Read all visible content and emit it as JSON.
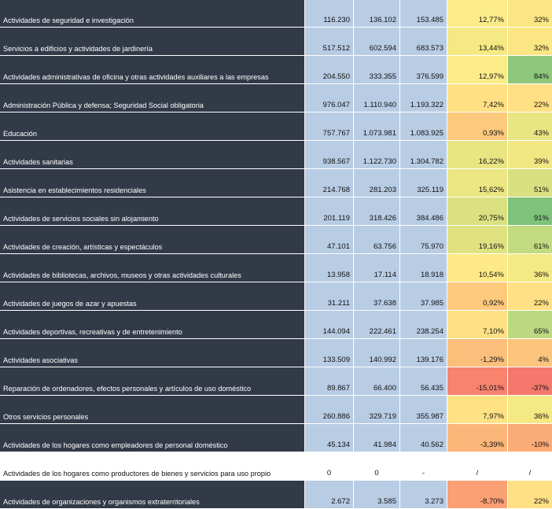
{
  "rows": [
    {
      "label": "Actividades de seguridad e investigación",
      "v1": "116.230",
      "v2": "136.102",
      "v3": "153.485",
      "pct": "12,77%",
      "share": "32%",
      "pct_color": "#fcec8a",
      "share_color": "#fbe683"
    },
    {
      "label": "Servicios a edificios y actividades de jardinería",
      "v1": "517.512",
      "v2": "602.594",
      "v3": "683.573",
      "pct": "13,44%",
      "share": "32%",
      "pct_color": "#f6e983",
      "share_color": "#fbe683"
    },
    {
      "label": "Actividades administrativas de oficina y otras actividades auxiliares a las empresas",
      "v1": "204.550",
      "v2": "333.355",
      "v3": "376.599",
      "pct": "12,97%",
      "share": "84%",
      "pct_color": "#fbec88",
      "share_color": "#8ec87b"
    },
    {
      "label": "Administración Pública y defensa; Seguridad Social obligatoria",
      "v1": "976.047",
      "v2": "1.110.940",
      "v3": "1.193.322",
      "pct": "7,42%",
      "share": "22%",
      "pct_color": "#ffe184",
      "share_color": "#ffe084"
    },
    {
      "label": "Educación",
      "v1": "757.767",
      "v2": "1.073.981",
      "v3": "1.083.925",
      "pct": "0,93%",
      "share": "43%",
      "pct_color": "#fdc97d",
      "share_color": "#e9e582"
    },
    {
      "label": "Actividades sanitarias",
      "v1": "938.567",
      "v2": "1.122.730",
      "v3": "1.304.782",
      "pct": "16,22%",
      "share": "39%",
      "pct_color": "#e9e582",
      "share_color": "#f2e883"
    },
    {
      "label": "Asistencia en establecimientos residenciales",
      "v1": "214.768",
      "v2": "281.203",
      "v3": "325.119",
      "pct": "15,62%",
      "share": "51%",
      "pct_color": "#ece683",
      "share_color": "#d8e081"
    },
    {
      "label": "Actividades de servicios sociales sin alojamiento",
      "v1": "201.119",
      "v2": "318.426",
      "v3": "384.486",
      "pct": "20,75%",
      "share": "91%",
      "pct_color": "#dbe181",
      "share_color": "#7fc27b"
    },
    {
      "label": "Actividades de creación, artísticas y espectáculos",
      "v1": "47.101",
      "v2": "63.756",
      "v3": "75.970",
      "pct": "19,16%",
      "share": "61%",
      "pct_color": "#e0e282",
      "share_color": "#c2da80"
    },
    {
      "label": "Actividades de bibliotecas, archivos, museos y otras actividades culturales",
      "v1": "13.958",
      "v2": "17.114",
      "v3": "18.918",
      "pct": "10,54%",
      "share": "36%",
      "pct_color": "#fdea86",
      "share_color": "#f5e983"
    },
    {
      "label": "Actividades de juegos de azar y apuestas",
      "v1": "31.211",
      "v2": "37.638",
      "v3": "37.985",
      "pct": "0,92%",
      "share": "22%",
      "pct_color": "#fdc97d",
      "share_color": "#ffe084"
    },
    {
      "label": "Actividades deportivas, recreativas y de entretenimiento",
      "v1": "144.094",
      "v2": "222.461",
      "v3": "238.254",
      "pct": "7,10%",
      "share": "65%",
      "pct_color": "#ffe084",
      "share_color": "#bcd880"
    },
    {
      "label": "Actividades asociativas",
      "v1": "133.509",
      "v2": "140.992",
      "v3": "139.176",
      "pct": "-1,29%",
      "share": "4%",
      "pct_color": "#fbbf7b",
      "share_color": "#fcc47c"
    },
    {
      "label": "Reparación de ordenadores, efectos personales y artículos de uso doméstico",
      "v1": "89.867",
      "v2": "66.400",
      "v3": "56.435",
      "pct": "-15,01%",
      "share": "-37%",
      "pct_color": "#f8836f",
      "share_color": "#f5786d"
    },
    {
      "label": "Otros servicios personales",
      "v1": "260.886",
      "v2": "329.719",
      "v3": "355.987",
      "pct": "7,97%",
      "share": "36%",
      "pct_color": "#ffe284",
      "share_color": "#f5e983"
    },
    {
      "label": "Actividades de los hogares como empleadores de personal doméstico",
      "v1": "45.134",
      "v2": "41.984",
      "v3": "40.562",
      "pct": "-3,39%",
      "share": "-10%",
      "pct_color": "#fbb679",
      "share_color": "#fbab77"
    },
    {
      "label": "Actividades de los hogares como productores de bienes y servicios para uso propio",
      "v1": "0",
      "v2": "0",
      "v3": "-",
      "pct": "/",
      "share": "/",
      "pct_color": "#ffffff",
      "share_color": "#ffffff",
      "blank": true
    },
    {
      "label": "Actividades de organizaciones y organismos extraterritoriales",
      "v1": "2.672",
      "v2": "3.585",
      "v3": "3.273",
      "pct": "-8,70%",
      "share": "22%",
      "pct_color": "#faa075",
      "share_color": "#ffe084"
    }
  ]
}
